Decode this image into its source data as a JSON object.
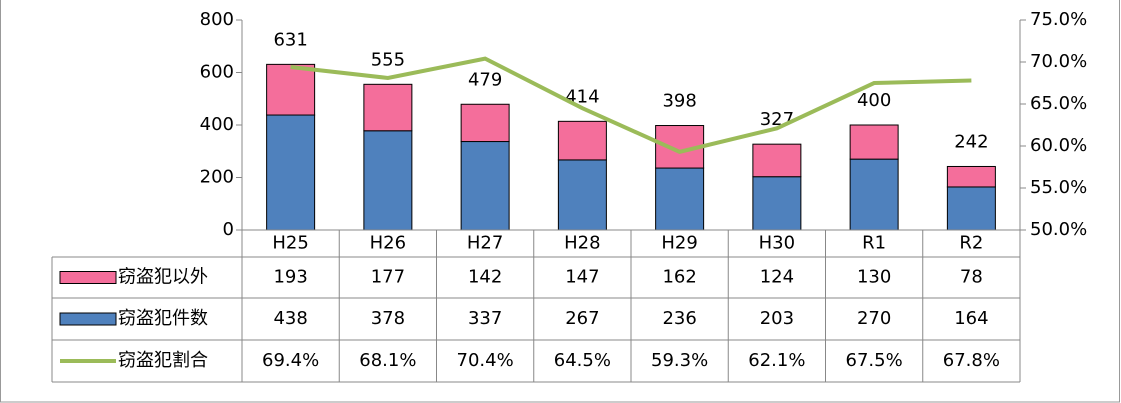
{
  "chart_data": {
    "type": "bar-line-table",
    "categories": [
      "H25",
      "H26",
      "H27",
      "H28",
      "H29",
      "H30",
      "R1",
      "R2"
    ],
    "series": [
      {
        "name": "窃盗犯以外",
        "color": "#f46e9b",
        "type": "bar",
        "values": [
          193,
          177,
          142,
          147,
          162,
          124,
          130,
          78
        ]
      },
      {
        "name": "窃盗犯件数",
        "color": "#4f81bd",
        "type": "bar",
        "values": [
          438,
          378,
          337,
          267,
          236,
          203,
          270,
          164
        ]
      },
      {
        "name": "窃盗犯割合",
        "color": "#9bbb59",
        "type": "line",
        "axis": "y2",
        "values": [
          69.4,
          68.1,
          70.4,
          64.5,
          59.3,
          62.1,
          67.5,
          67.8
        ],
        "value_labels": [
          "69.4%",
          "68.1%",
          "70.4%",
          "64.5%",
          "59.3%",
          "62.1%",
          "67.5%",
          "67.8%"
        ]
      }
    ],
    "totals": [
      631,
      555,
      479,
      414,
      398,
      327,
      400,
      242
    ],
    "ylim": [
      0,
      800
    ],
    "yticks": [
      0,
      200,
      400,
      600,
      800
    ],
    "y2lim": [
      50,
      75
    ],
    "y2ticks": [
      {
        "value": 50,
        "label": "50.0%"
      },
      {
        "value": 55,
        "label": "55.0%"
      },
      {
        "value": 60,
        "label": "60.0%"
      },
      {
        "value": 65,
        "label": "65.0%"
      },
      {
        "value": 70,
        "label": "70.0%"
      },
      {
        "value": 75,
        "label": "75.0%"
      }
    ]
  }
}
